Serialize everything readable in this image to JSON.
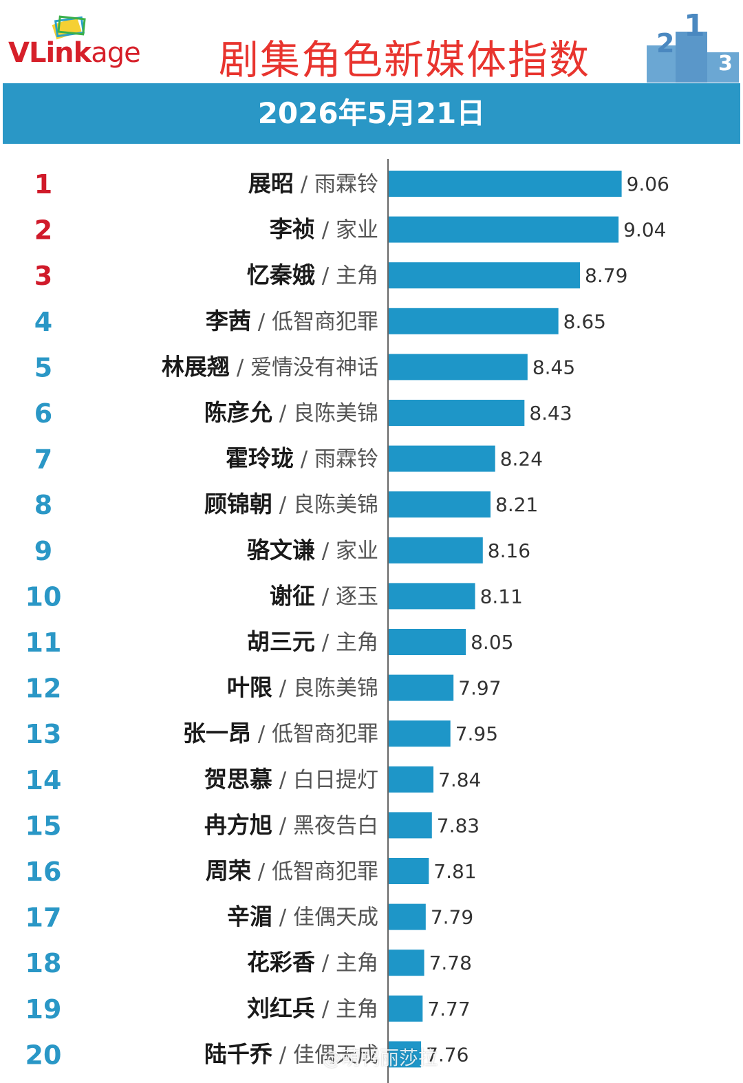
{
  "brand": {
    "logo_text_v": "V",
    "logo_text_l": "Link",
    "logo_text_rest": "age",
    "accent": "#e8342e",
    "band_color": "#2a97c6"
  },
  "title": "剧集角色新媒体指数",
  "date": "2026年5月21日",
  "podium": {
    "first": "1",
    "second": "2",
    "third": "3"
  },
  "watermark": "@萌鸭丽莎拉",
  "chart_data": {
    "type": "bar",
    "orientation": "horizontal",
    "rank_colors": {
      "top3": "#d01a2a",
      "rest": "#2a97c6"
    },
    "bar_color": "#1e96c8",
    "xlim": [
      7.55,
      9.2
    ],
    "rows": [
      {
        "rank": "1",
        "name": "展昭",
        "drama": "雨霖铃",
        "value": 9.06,
        "label": "9.06"
      },
      {
        "rank": "2",
        "name": "李祯",
        "drama": "家业",
        "value": 9.04,
        "label": "9.04"
      },
      {
        "rank": "3",
        "name": "忆秦娥",
        "drama": "主角",
        "value": 8.79,
        "label": "8.79"
      },
      {
        "rank": "4",
        "name": "李茜",
        "drama": "低智商犯罪",
        "value": 8.65,
        "label": "8.65"
      },
      {
        "rank": "5",
        "name": "林展翘",
        "drama": "爱情没有神话",
        "value": 8.45,
        "label": "8.45"
      },
      {
        "rank": "6",
        "name": "陈彦允",
        "drama": "良陈美锦",
        "value": 8.43,
        "label": "8.43"
      },
      {
        "rank": "7",
        "name": "霍玲珑",
        "drama": "雨霖铃",
        "value": 8.24,
        "label": "8.24"
      },
      {
        "rank": "8",
        "name": "顾锦朝",
        "drama": "良陈美锦",
        "value": 8.21,
        "label": "8.21"
      },
      {
        "rank": "9",
        "name": "骆文谦",
        "drama": "家业",
        "value": 8.16,
        "label": "8.16"
      },
      {
        "rank": "10",
        "name": "谢征",
        "drama": "逐玉",
        "value": 8.11,
        "label": "8.11"
      },
      {
        "rank": "11",
        "name": "胡三元",
        "drama": "主角",
        "value": 8.05,
        "label": "8.05"
      },
      {
        "rank": "12",
        "name": "叶限",
        "drama": "良陈美锦",
        "value": 7.97,
        "label": "7.97"
      },
      {
        "rank": "13",
        "name": "张一昂",
        "drama": "低智商犯罪",
        "value": 7.95,
        "label": "7.95"
      },
      {
        "rank": "14",
        "name": "贺思慕",
        "drama": "白日提灯",
        "value": 7.84,
        "label": "7.84"
      },
      {
        "rank": "15",
        "name": "冉方旭",
        "drama": "黑夜告白",
        "value": 7.83,
        "label": "7.83"
      },
      {
        "rank": "16",
        "name": "周荣",
        "drama": "低智商犯罪",
        "value": 7.81,
        "label": "7.81"
      },
      {
        "rank": "17",
        "name": "辛湄",
        "drama": "佳偶天成",
        "value": 7.79,
        "label": "7.79"
      },
      {
        "rank": "18",
        "name": "花彩香",
        "drama": "主角",
        "value": 7.78,
        "label": "7.78"
      },
      {
        "rank": "19",
        "name": "刘红兵",
        "drama": "主角",
        "value": 7.77,
        "label": "7.77"
      },
      {
        "rank": "20",
        "name": "陆千乔",
        "drama": "佳偶天成",
        "value": 7.76,
        "label": "7.76"
      }
    ]
  }
}
